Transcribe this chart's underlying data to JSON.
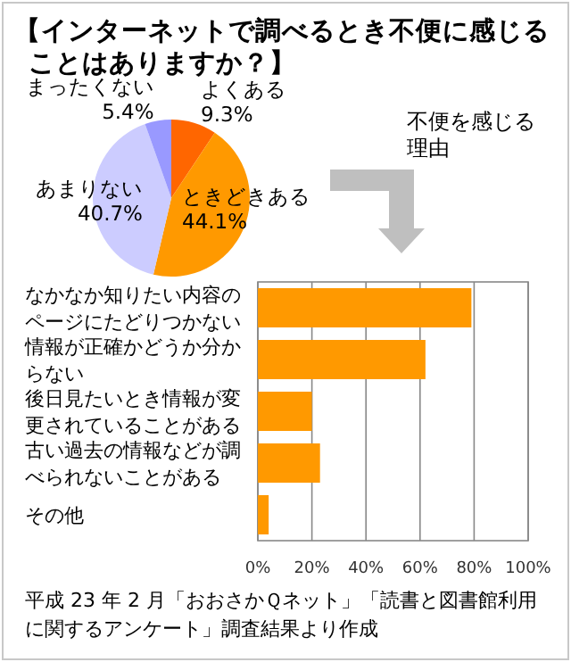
{
  "chart_data": [
    {
      "type": "pie",
      "title": "【インターネットで調べるとき不便に感じることはありますか？】",
      "categories": [
        "よくある",
        "ときどきある",
        "あまりない",
        "まったくない"
      ],
      "values": [
        9.3,
        44.1,
        40.7,
        5.4
      ],
      "colors": [
        "#ff6600",
        "#ff9900",
        "#ccccff",
        "#9999ff"
      ],
      "value_labels": [
        "9.3%",
        "44.1%",
        "40.7%",
        "5.4%"
      ]
    },
    {
      "type": "bar",
      "orientation": "horizontal",
      "title": "不便を感じる理由",
      "categories": [
        "なかなか知りたい内容のページにたどりつかない",
        "情報が正確かどうか分からない",
        "後日見たいとき情報が変更されていることがある",
        "古い過去の情報などが調べられないことがある",
        "その他"
      ],
      "values": [
        79,
        62,
        20,
        23,
        4
      ],
      "color": "#ff9900",
      "xlim": [
        0,
        100
      ],
      "xticks": [
        {
          "value": 0,
          "label": "0%"
        },
        {
          "value": 20,
          "label": "20%"
        },
        {
          "value": 40,
          "label": "40%"
        },
        {
          "value": 60,
          "label": "60%"
        },
        {
          "value": 80,
          "label": "80%"
        },
        {
          "value": 100,
          "label": "100%"
        }
      ],
      "grid": "x",
      "annotations": [
        "平成 23 年 2 月「おおさかＱネット」「読書と図書館利用に関するアンケート」調査結果より作成"
      ]
    }
  ]
}
